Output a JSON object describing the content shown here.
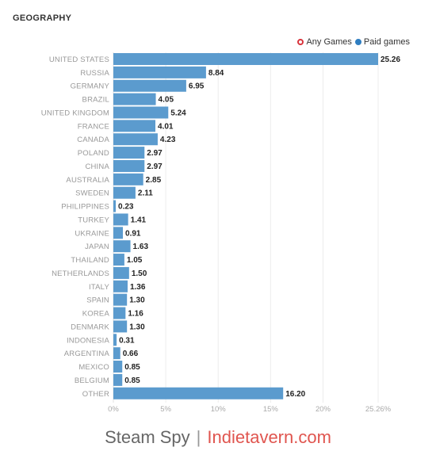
{
  "section_title": "GEOGRAPHY",
  "legend": {
    "items": [
      {
        "label": "Any Games",
        "color": "#d9343c",
        "style": "hollow"
      },
      {
        "label": "Paid games",
        "color": "#2f7ec1",
        "style": "filled"
      }
    ]
  },
  "chart_data": {
    "type": "bar",
    "orientation": "horizontal",
    "categories": [
      "UNITED STATES",
      "RUSSIA",
      "GERMANY",
      "BRAZIL",
      "UNITED KINGDOM",
      "FRANCE",
      "CANADA",
      "POLAND",
      "CHINA",
      "AUSTRALIA",
      "SWEDEN",
      "PHILIPPINES",
      "TURKEY",
      "UKRAINE",
      "JAPAN",
      "THAILAND",
      "NETHERLANDS",
      "ITALY",
      "SPAIN",
      "KOREA",
      "DENMARK",
      "INDONESIA",
      "ARGENTINA",
      "MEXICO",
      "BELGIUM",
      "OTHER"
    ],
    "values": [
      25.26,
      8.84,
      6.95,
      4.05,
      5.24,
      4.01,
      4.23,
      2.97,
      2.97,
      2.85,
      2.11,
      0.23,
      1.41,
      0.91,
      1.63,
      1.05,
      1.5,
      1.36,
      1.3,
      1.16,
      1.3,
      0.31,
      0.66,
      0.85,
      0.85,
      16.2
    ],
    "value_labels": [
      "25.26",
      "8.84",
      "6.95",
      "4.05",
      "5.24",
      "4.01",
      "4.23",
      "2.97",
      "2.97",
      "2.85",
      "2.11",
      "0.23",
      "1.41",
      "0.91",
      "1.63",
      "1.05",
      "1.50",
      "1.36",
      "1.30",
      "1.16",
      "1.30",
      "0.31",
      "0.66",
      "0.85",
      "0.85",
      "16.20"
    ],
    "xticks": [
      0,
      5,
      10,
      15,
      20,
      25.26
    ],
    "xtick_labels": [
      "0%",
      "5%",
      "10%",
      "15%",
      "20%",
      "25.26%"
    ],
    "xlim": [
      0,
      25.26
    ],
    "grid": "vertical",
    "bar_color": "#5b9bce",
    "legend_position": "top-right"
  },
  "footer": {
    "left": "Steam Spy",
    "separator": "|",
    "right": "Indietavern.com"
  }
}
